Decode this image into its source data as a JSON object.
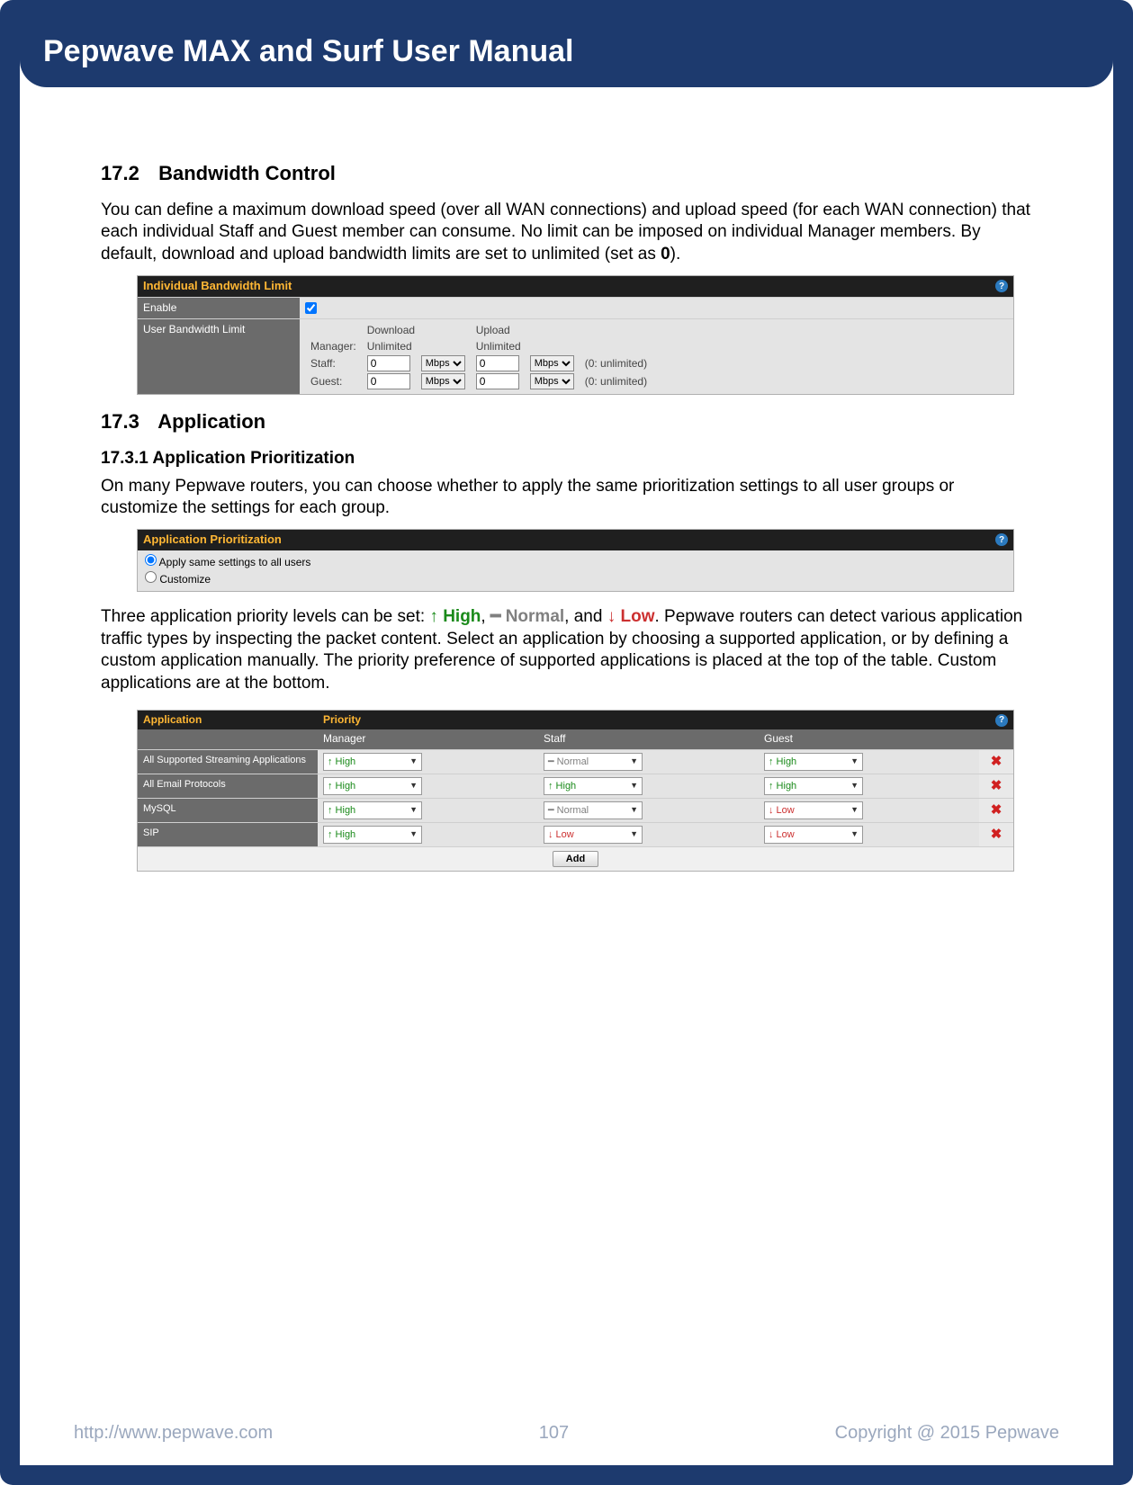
{
  "header": {
    "title": "Pepwave MAX and Surf User Manual"
  },
  "sections": {
    "s172": {
      "num": "17.2",
      "title": "Bandwidth Control"
    },
    "s173": {
      "num": "17.3",
      "title": "Application"
    },
    "s1731": {
      "title": "17.3.1 Application Prioritization"
    }
  },
  "body": {
    "p1": "You can define a maximum download speed (over all WAN connections) and upload speed (for each WAN connection) that each individual Staff and Guest member can consume. No limit can be imposed on individual Manager members. By default, download and upload bandwidth limits are set to unlimited (set as ",
    "p1b": ").",
    "zero": "0",
    "p2": "On many Pepwave routers, you can choose whether to apply the same prioritization settings to all user groups or customize the settings for each group.",
    "p3a": "Three application priority levels can be set: ",
    "p3_high": "↑ High",
    "p3_sep1": ",",
    "p3_normal": "━ Normal",
    "p3_sep2": ", and ",
    "p3_low": "↓ Low",
    "p3b": ". Pepwave routers can detect various application traffic types by inspecting the packet content. Select an application by choosing a supported application, or by defining a custom application manually. The priority preference of supported applications is placed at the top of the table. Custom applications are at the bottom."
  },
  "bwpanel": {
    "title": "Individual Bandwidth Limit",
    "row_enable": "Enable",
    "row_user": "User Bandwidth Limit",
    "col_download": "Download",
    "col_upload": "Upload",
    "manager": "Manager:",
    "unlimited": "Unlimited",
    "staff": "Staff:",
    "guest": "Guest:",
    "val": "0",
    "unit": "Mbps",
    "note": "(0: unlimited)"
  },
  "apppanel": {
    "title": "Application Prioritization",
    "opt_same": "Apply same settings to all users",
    "opt_custom": "Customize"
  },
  "priotable": {
    "h_app": "Application",
    "h_prio": "Priority",
    "sub_manager": "Manager",
    "sub_staff": "Staff",
    "sub_guest": "Guest",
    "rows": [
      {
        "app": "All Supported Streaming Applications",
        "manager": "high",
        "staff": "normal",
        "guest": "high"
      },
      {
        "app": "All Email Protocols",
        "manager": "high",
        "staff": "high",
        "guest": "high"
      },
      {
        "app": "MySQL",
        "manager": "high",
        "staff": "normal",
        "guest": "low"
      },
      {
        "app": "SIP",
        "manager": "high",
        "staff": "low",
        "guest": "low"
      }
    ],
    "opt_high": "↑ High",
    "opt_normal": "━ Normal",
    "opt_low": "↓ Low",
    "add": "Add",
    "del": "✖"
  },
  "footer": {
    "url": "http://www.pepwave.com",
    "page": "107",
    "copyright": "Copyright @ 2015 Pepwave"
  },
  "colors": {
    "frame": "#1d3a6e",
    "accent": "#ffb734",
    "dark": "#1f1f1f",
    "grey": "#6b6b6b",
    "high": "#1a8a1a",
    "normal": "#808080",
    "low": "#cc3030"
  }
}
